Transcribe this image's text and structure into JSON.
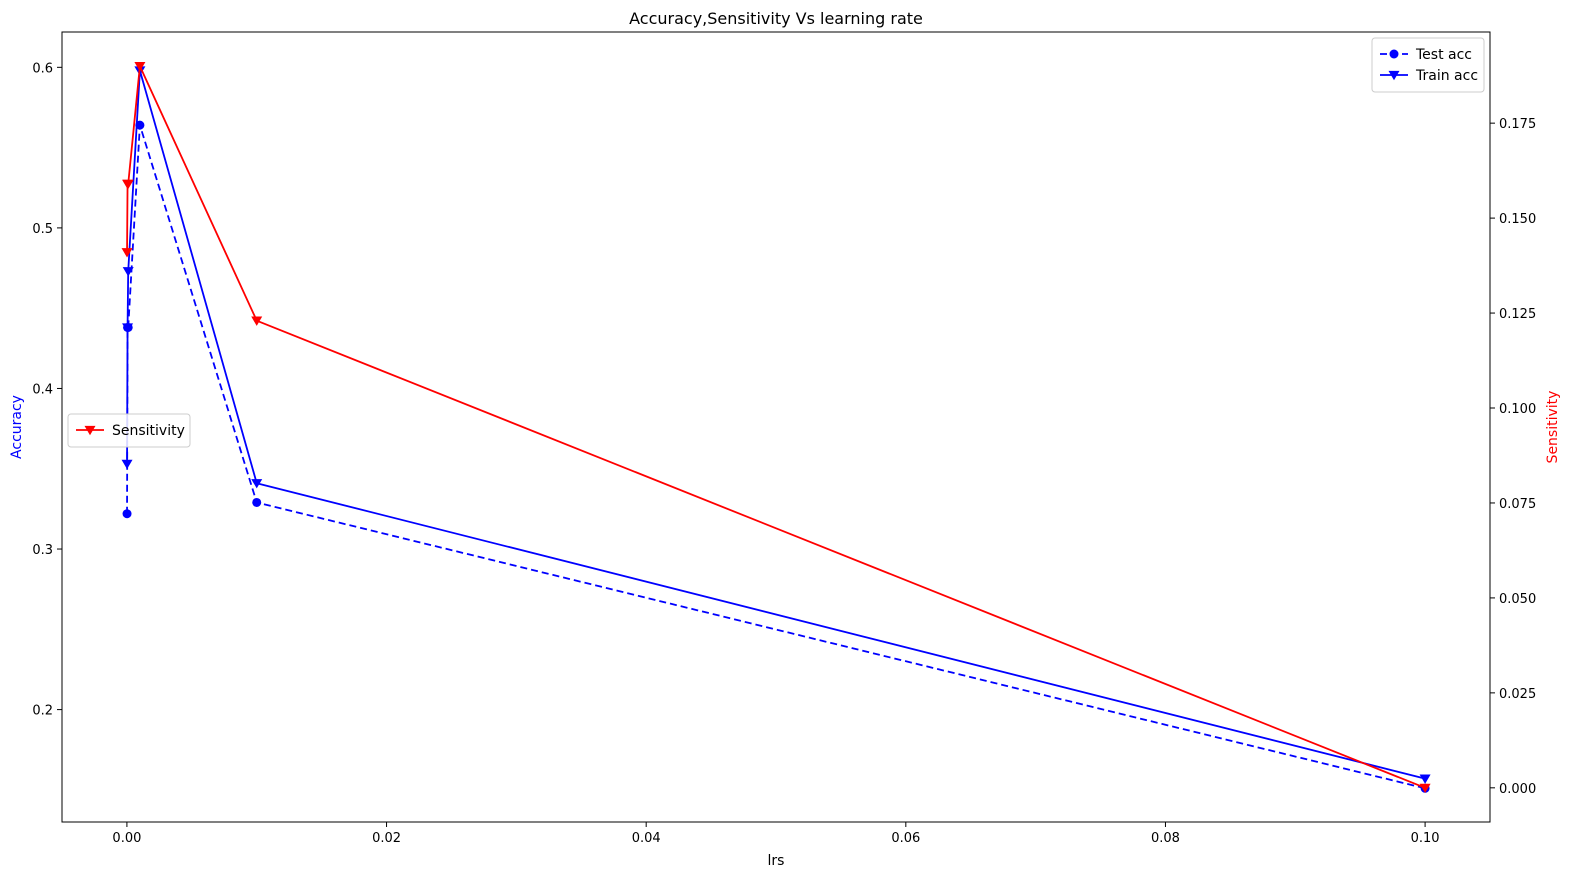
{
  "chart_data": {
    "type": "line",
    "title": "Accuracy,Sensitivity Vs learning rate",
    "xlabel": "lrs",
    "ylabel_left": "Accuracy",
    "ylabel_right": "Sensitivity",
    "xlim": [
      -0.005,
      0.105
    ],
    "ylim_left": [
      0.13,
      0.622
    ],
    "ylim_right": [
      -0.009,
      0.199
    ],
    "x_ticks": [
      0.0,
      0.02,
      0.04,
      0.06,
      0.08,
      0.1
    ],
    "x_tick_labels": [
      "0.00",
      "0.02",
      "0.04",
      "0.06",
      "0.08",
      "0.10"
    ],
    "y_left_ticks": [
      0.2,
      0.3,
      0.4,
      0.5,
      0.6
    ],
    "y_left_tick_labels": [
      "0.2",
      "0.3",
      "0.4",
      "0.5",
      "0.6"
    ],
    "y_right_ticks": [
      0.0,
      0.025,
      0.05,
      0.075,
      0.1,
      0.125,
      0.15,
      0.175
    ],
    "y_right_tick_labels": [
      "0.000",
      "0.025",
      "0.050",
      "0.075",
      "0.100",
      "0.125",
      "0.150",
      "0.175"
    ],
    "x": [
      1e-05,
      5e-05,
      0.0001,
      0.001,
      0.01,
      0.1
    ],
    "series": [
      {
        "name": "Test acc",
        "axis": "left",
        "color": "#0000ff",
        "linestyle": "dashed",
        "marker": "circle",
        "values": [
          0.322,
          0.438,
          0.438,
          0.564,
          0.329,
          0.151
        ]
      },
      {
        "name": "Train acc",
        "axis": "left",
        "color": "#0000ff",
        "linestyle": "solid",
        "marker": "triangle-down",
        "values": [
          0.353,
          0.438,
          0.473,
          0.598,
          0.341,
          0.157
        ]
      },
      {
        "name": "Sensitivity",
        "axis": "right",
        "color": "#ff0000",
        "linestyle": "solid",
        "marker": "triangle-down",
        "values": [
          0.141,
          0.159,
          0.159,
          0.19,
          0.123,
          0.0
        ]
      }
    ],
    "legends": [
      {
        "placement": "upper-right",
        "entries": [
          "Test acc",
          "Train acc"
        ]
      },
      {
        "placement": "center-left",
        "entries": [
          "Sensitivity"
        ]
      }
    ],
    "grid": false
  }
}
